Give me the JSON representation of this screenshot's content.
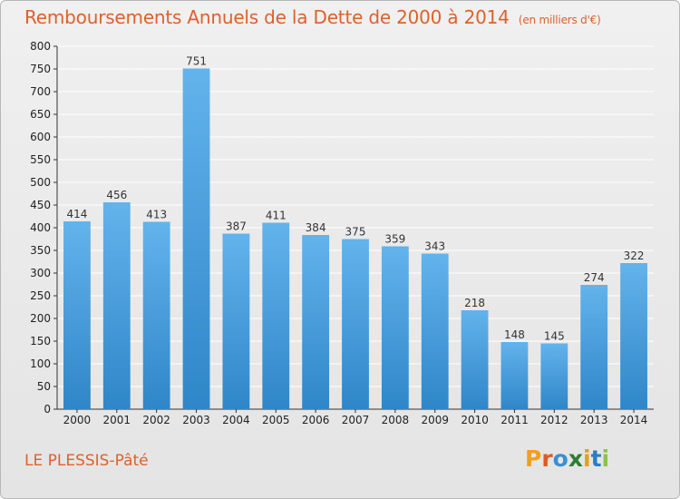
{
  "title": "Remboursements Annuels de la Dette de 2000 à 2014",
  "unit": "(en milliers d'€)",
  "commune": "LE PLESSIS-Pâté",
  "logo": {
    "letters": [
      "P",
      "r",
      "o",
      "x",
      "i",
      "t",
      "i"
    ],
    "colors": [
      "#f0a020",
      "#e05a20",
      "#3a8fd0",
      "#2e7d32",
      "#e0a020",
      "#2a7fc0",
      "#8bc34a"
    ]
  },
  "colors": {
    "bar_light": "#63b3ec",
    "bar_dark": "#2f86c8",
    "grid": "#ffffff",
    "title": "#e0602a"
  },
  "chart_data": {
    "type": "bar",
    "categories": [
      "2000",
      "2001",
      "2002",
      "2003",
      "2004",
      "2005",
      "2006",
      "2007",
      "2008",
      "2009",
      "2010",
      "2011",
      "2012",
      "2013",
      "2014"
    ],
    "values": [
      414,
      456,
      413,
      751,
      387,
      411,
      384,
      375,
      359,
      343,
      218,
      148,
      145,
      274,
      322
    ],
    "title": "Remboursements Annuels de la Dette de 2000 à 2014",
    "xlabel": "",
    "ylabel": "",
    "ylim": [
      0,
      800
    ],
    "yticks": [
      0,
      50,
      100,
      150,
      200,
      250,
      300,
      350,
      400,
      450,
      500,
      550,
      600,
      650,
      700,
      750,
      800
    ],
    "grid": true,
    "data_labels": true
  }
}
